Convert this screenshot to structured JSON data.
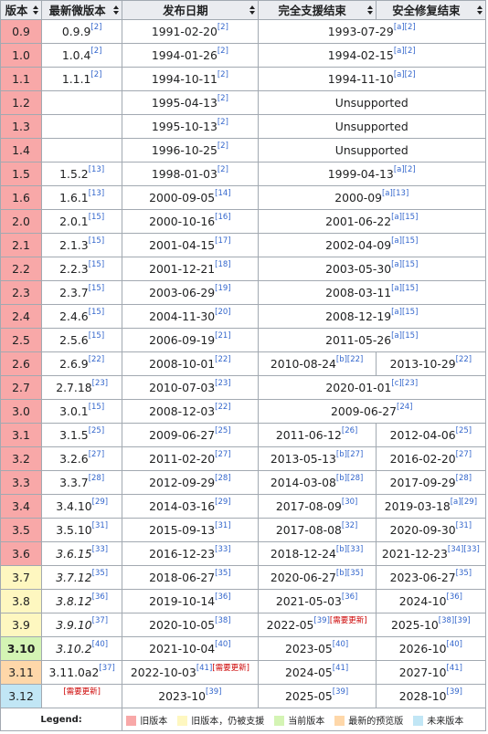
{
  "headers": {
    "version": "版本",
    "latest_micro": "最新微版本",
    "release_date": "发布日期",
    "full_support_end": "完全支援结束",
    "security_end": "安全修复结束"
  },
  "status_colors": {
    "old": "#f8a8a8",
    "old_supported": "#fef7c0",
    "current": "#d4f4b4",
    "preview": "#fed7a9",
    "future": "#c1e6f5"
  },
  "rows": [
    {
      "version": "0.9",
      "status": "old",
      "micro": "0.9.9",
      "micro_ref": "[2]",
      "release": "1991-02-20",
      "release_ref": "[2]",
      "merged": true,
      "full": "1993-07-29",
      "full_ref": "[a][2]"
    },
    {
      "version": "1.0",
      "status": "old",
      "micro": "1.0.4",
      "micro_ref": "[2]",
      "release": "1994-01-26",
      "release_ref": "[2]",
      "merged": true,
      "full": "1994-02-15",
      "full_ref": "[a][2]"
    },
    {
      "version": "1.1",
      "status": "old",
      "micro": "1.1.1",
      "micro_ref": "[2]",
      "release": "1994-10-11",
      "release_ref": "[2]",
      "merged": true,
      "full": "1994-11-10",
      "full_ref": "[a][2]"
    },
    {
      "version": "1.2",
      "status": "old",
      "micro": "",
      "micro_ref": "",
      "release": "1995-04-13",
      "release_ref": "[2]",
      "merged": true,
      "full": "Unsupported",
      "full_ref": ""
    },
    {
      "version": "1.3",
      "status": "old",
      "micro": "",
      "micro_ref": "",
      "release": "1995-10-13",
      "release_ref": "[2]",
      "merged": true,
      "full": "Unsupported",
      "full_ref": ""
    },
    {
      "version": "1.4",
      "status": "old",
      "micro": "",
      "micro_ref": "",
      "release": "1996-10-25",
      "release_ref": "[2]",
      "merged": true,
      "full": "Unsupported",
      "full_ref": ""
    },
    {
      "version": "1.5",
      "status": "old",
      "micro": "1.5.2",
      "micro_ref": "[13]",
      "release": "1998-01-03",
      "release_ref": "[2]",
      "merged": true,
      "full": "1999-04-13",
      "full_ref": "[a][2]"
    },
    {
      "version": "1.6",
      "status": "old",
      "micro": "1.6.1",
      "micro_ref": "[13]",
      "release": "2000-09-05",
      "release_ref": "[14]",
      "merged": true,
      "full": "2000-09",
      "full_ref": "[a][13]"
    },
    {
      "version": "2.0",
      "status": "old",
      "micro": "2.0.1",
      "micro_ref": "[15]",
      "release": "2000-10-16",
      "release_ref": "[16]",
      "merged": true,
      "full": "2001-06-22",
      "full_ref": "[a][15]"
    },
    {
      "version": "2.1",
      "status": "old",
      "micro": "2.1.3",
      "micro_ref": "[15]",
      "release": "2001-04-15",
      "release_ref": "[17]",
      "merged": true,
      "full": "2002-04-09",
      "full_ref": "[a][15]"
    },
    {
      "version": "2.2",
      "status": "old",
      "micro": "2.2.3",
      "micro_ref": "[15]",
      "release": "2001-12-21",
      "release_ref": "[18]",
      "merged": true,
      "full": "2003-05-30",
      "full_ref": "[a][15]"
    },
    {
      "version": "2.3",
      "status": "old",
      "micro": "2.3.7",
      "micro_ref": "[15]",
      "release": "2003-06-29",
      "release_ref": "[19]",
      "merged": true,
      "full": "2008-03-11",
      "full_ref": "[a][15]"
    },
    {
      "version": "2.4",
      "status": "old",
      "micro": "2.4.6",
      "micro_ref": "[15]",
      "release": "2004-11-30",
      "release_ref": "[20]",
      "merged": true,
      "full": "2008-12-19",
      "full_ref": "[a][15]"
    },
    {
      "version": "2.5",
      "status": "old",
      "micro": "2.5.6",
      "micro_ref": "[15]",
      "release": "2006-09-19",
      "release_ref": "[21]",
      "merged": true,
      "full": "2011-05-26",
      "full_ref": "[a][15]"
    },
    {
      "version": "2.6",
      "status": "old",
      "micro": "2.6.9",
      "micro_ref": "[22]",
      "release": "2008-10-01",
      "release_ref": "[22]",
      "merged": false,
      "full": "2010-08-24",
      "full_ref": "[b][22]",
      "sec": "2013-10-29",
      "sec_ref": "[22]"
    },
    {
      "version": "2.7",
      "status": "old",
      "micro": "2.7.18",
      "micro_ref": "[23]",
      "release": "2010-07-03",
      "release_ref": "[23]",
      "merged": true,
      "full": "2020-01-01",
      "full_ref": "[c][23]"
    },
    {
      "version": "3.0",
      "status": "old",
      "micro": "3.0.1",
      "micro_ref": "[15]",
      "release": "2008-12-03",
      "release_ref": "[22]",
      "merged": true,
      "full": "2009-06-27",
      "full_ref": "[24]"
    },
    {
      "version": "3.1",
      "status": "old",
      "micro": "3.1.5",
      "micro_ref": "[25]",
      "release": "2009-06-27",
      "release_ref": "[25]",
      "merged": false,
      "full": "2011-06-12",
      "full_ref": "[26]",
      "sec": "2012-04-06",
      "sec_ref": "[25]"
    },
    {
      "version": "3.2",
      "status": "old",
      "micro": "3.2.6",
      "micro_ref": "[27]",
      "release": "2011-02-20",
      "release_ref": "[27]",
      "merged": false,
      "full": "2013-05-13",
      "full_ref": "[b][27]",
      "sec": "2016-02-20",
      "sec_ref": "[27]"
    },
    {
      "version": "3.3",
      "status": "old",
      "micro": "3.3.7",
      "micro_ref": "[28]",
      "release": "2012-09-29",
      "release_ref": "[28]",
      "merged": false,
      "full": "2014-03-08",
      "full_ref": "[b][28]",
      "sec": "2017-09-29",
      "sec_ref": "[28]"
    },
    {
      "version": "3.4",
      "status": "old",
      "micro": "3.4.10",
      "micro_ref": "[29]",
      "release": "2014-03-16",
      "release_ref": "[29]",
      "merged": false,
      "full": "2017-08-09",
      "full_ref": "[30]",
      "sec": "2019-03-18",
      "sec_ref": "[a][29]"
    },
    {
      "version": "3.5",
      "status": "old",
      "micro": "3.5.10",
      "micro_ref": "[31]",
      "release": "2015-09-13",
      "release_ref": "[31]",
      "merged": false,
      "full": "2017-08-08",
      "full_ref": "[32]",
      "sec": "2020-09-30",
      "sec_ref": "[31]"
    },
    {
      "version": "3.6",
      "status": "old",
      "micro": "3.6.15",
      "micro_italic": true,
      "micro_ref": "[33]",
      "release": "2016-12-23",
      "release_ref": "[33]",
      "merged": false,
      "full": "2018-12-24",
      "full_ref": "[b][33]",
      "sec": "2021-12-23",
      "sec_ref": "[34][33]"
    },
    {
      "version": "3.7",
      "status": "old_supported",
      "micro": "3.7.12",
      "micro_italic": true,
      "micro_ref": "[35]",
      "release": "2018-06-27",
      "release_ref": "[35]",
      "merged": false,
      "full": "2020-06-27",
      "full_ref": "[b][35]",
      "sec": "2023-06-27",
      "sec_ref": "[35]"
    },
    {
      "version": "3.8",
      "status": "old_supported",
      "micro": "3.8.12",
      "micro_italic": true,
      "micro_ref": "[36]",
      "release": "2019-10-14",
      "release_ref": "[36]",
      "merged": false,
      "full": "2021-05-03",
      "full_ref": "[36]",
      "sec": "2024-10",
      "sec_ref": "[36]"
    },
    {
      "version": "3.9",
      "status": "old_supported",
      "micro": "3.9.10",
      "micro_italic": true,
      "micro_ref": "[37]",
      "release": "2020-10-05",
      "release_ref": "[38]",
      "merged": false,
      "full": "2022-05",
      "full_ref": "[39]",
      "full_ref_red": "[需要更新]",
      "sec": "2025-10",
      "sec_ref": "[38][39]"
    },
    {
      "version": "3.10",
      "status": "current",
      "micro": "3.10.2",
      "micro_italic": true,
      "micro_ref": "[40]",
      "release": "2021-10-04",
      "release_ref": "[40]",
      "merged": false,
      "full": "2023-05",
      "full_ref": "[40]",
      "sec": "2026-10",
      "sec_ref": "[40]"
    },
    {
      "version": "3.11",
      "status": "preview",
      "micro": "3.11.0a2",
      "micro_ref": "[37]",
      "release": "2022-10-03",
      "release_ref": "[41]",
      "release_ref_red": "[需要更新]",
      "merged": false,
      "full": "2024-05",
      "full_ref": "[41]",
      "sec": "2027-10",
      "sec_ref": "[41]"
    },
    {
      "version": "3.12",
      "status": "future",
      "micro": "",
      "micro_ref": "",
      "micro_ref_red": "[需要更新]",
      "release": "2023-10",
      "release_ref": "[39]",
      "merged": false,
      "full": "2025-05",
      "full_ref": "[39]",
      "sec": "2028-10",
      "sec_ref": "[39]"
    }
  ],
  "legend": {
    "title": "Legend:",
    "items": [
      {
        "key": "old",
        "label": "旧版本"
      },
      {
        "key": "old_supported",
        "label": "旧版本，仍被支援"
      },
      {
        "key": "current",
        "label": "当前版本"
      },
      {
        "key": "preview",
        "label": "最新的预览版"
      },
      {
        "key": "future",
        "label": "未来版本"
      }
    ]
  }
}
